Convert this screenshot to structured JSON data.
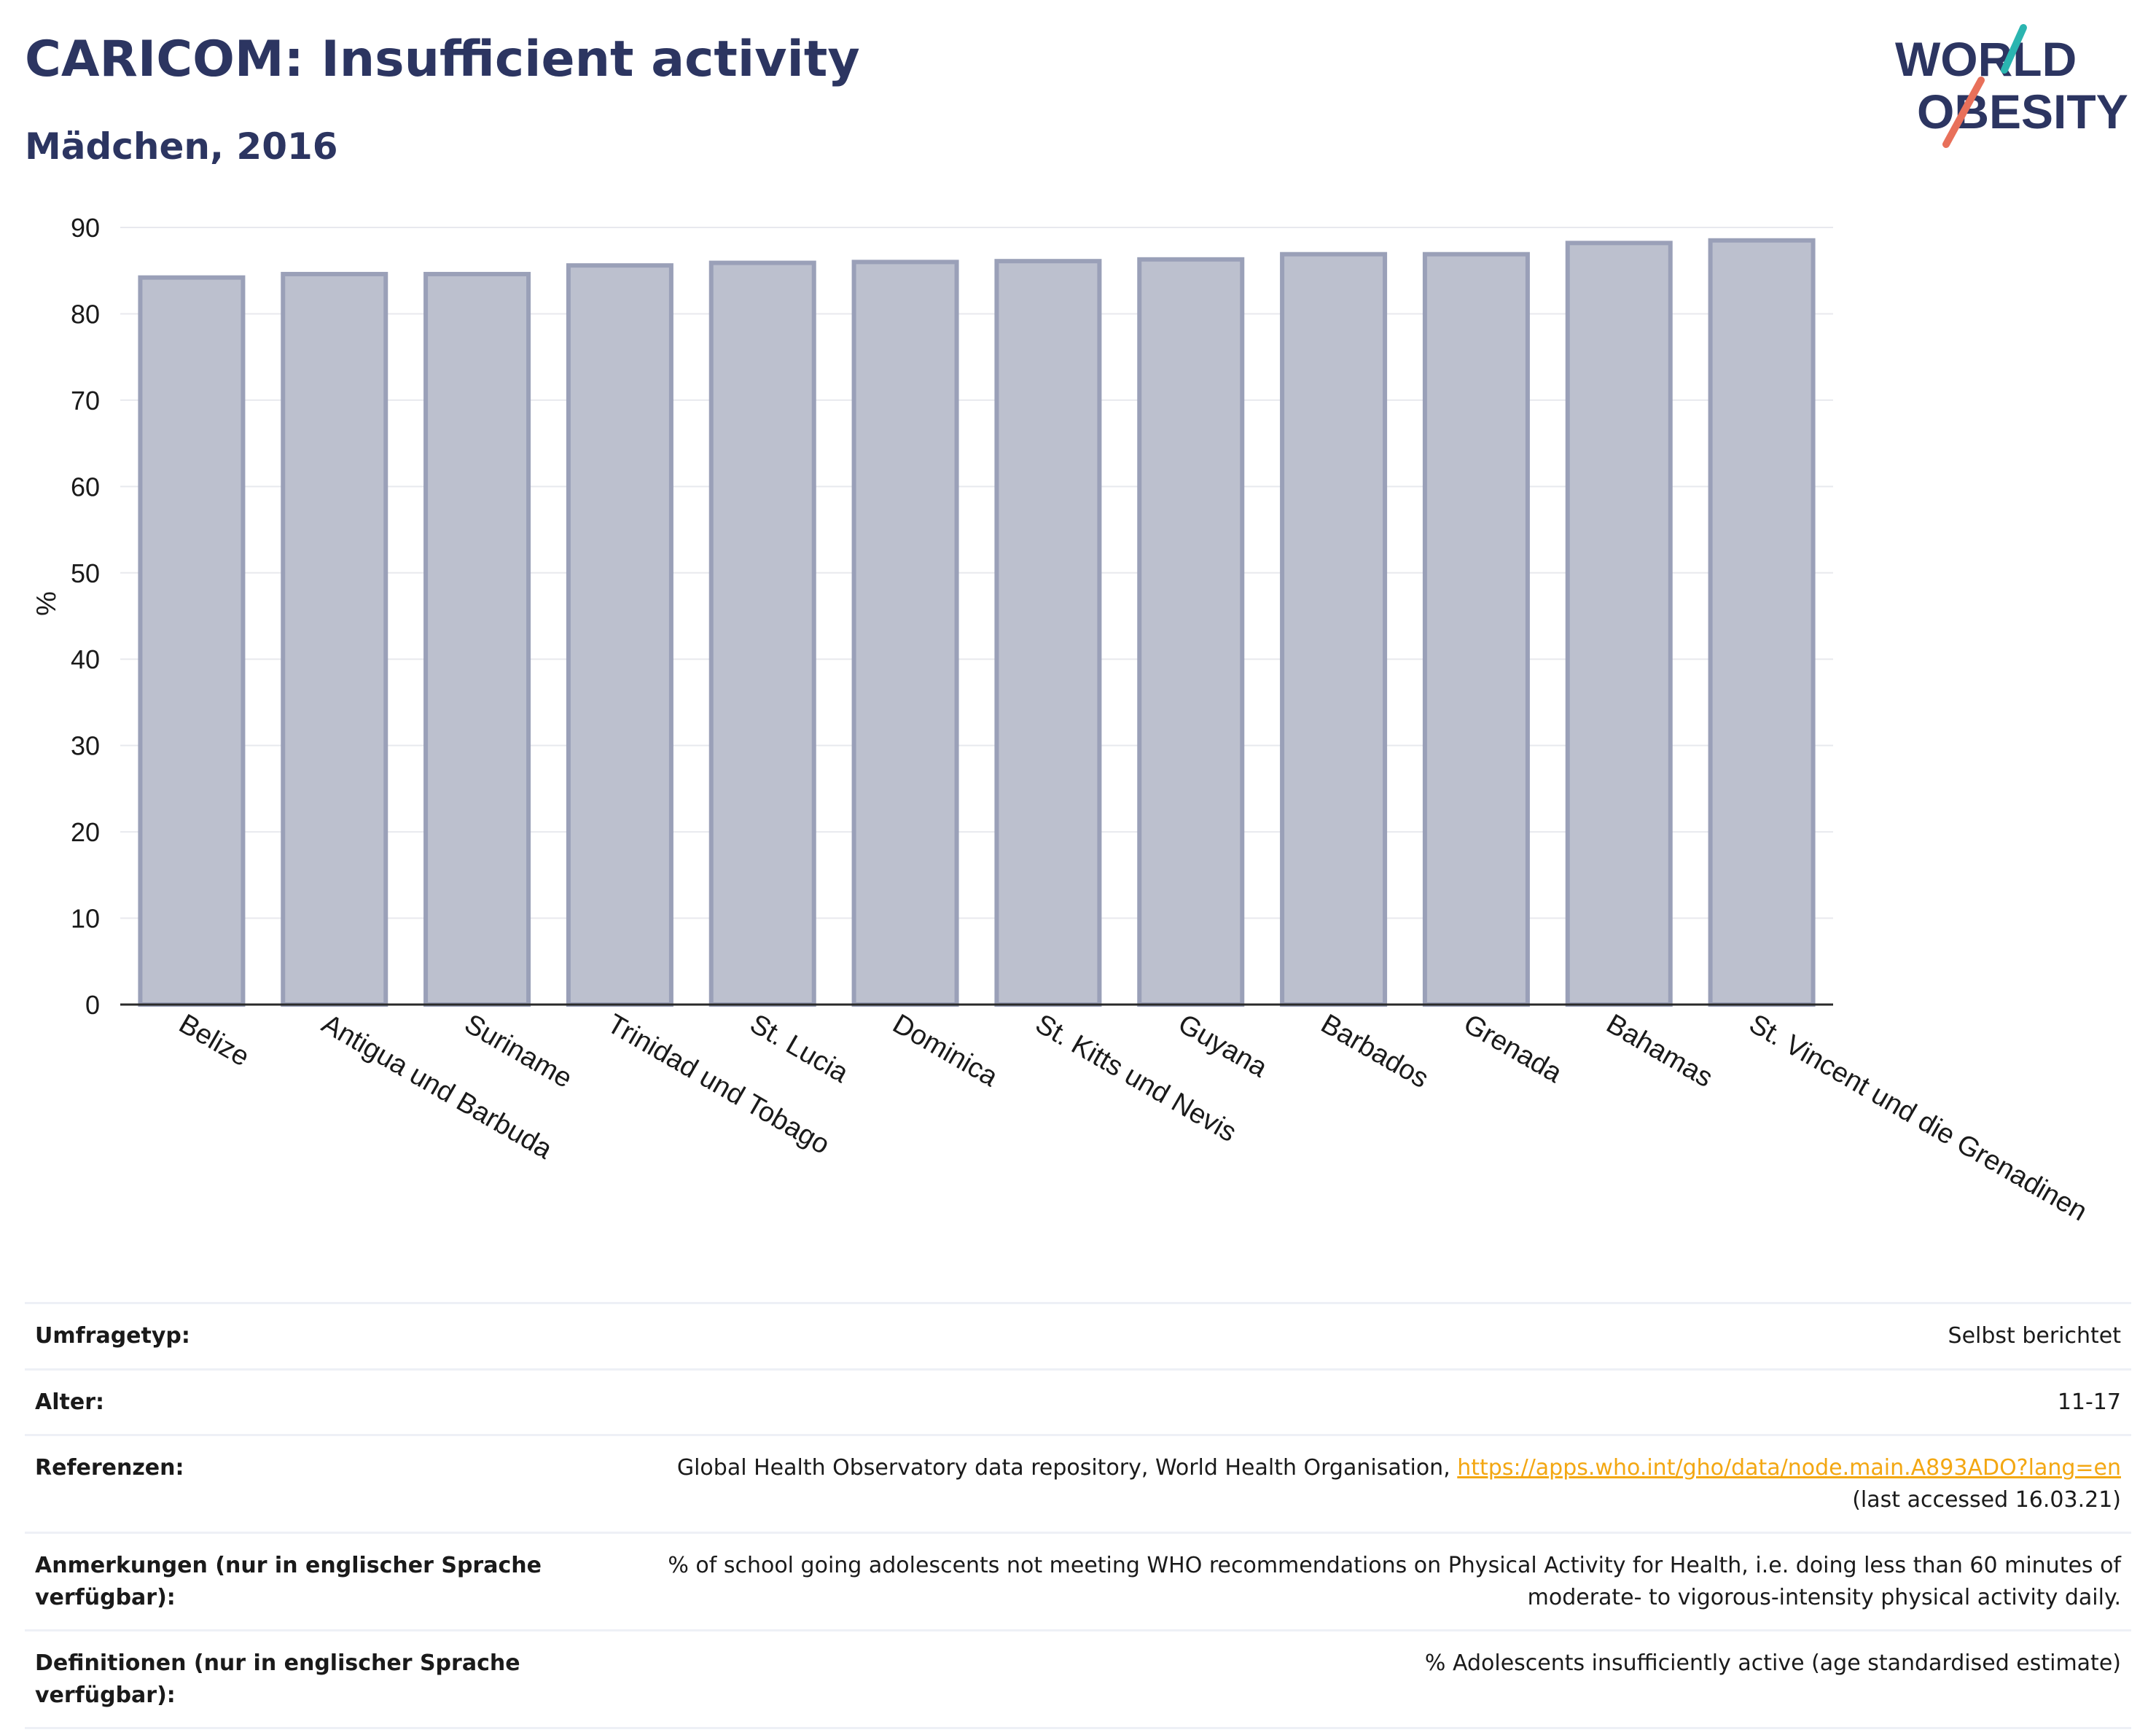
{
  "header": {
    "title": "CARICOM: Insufficient activity",
    "subtitle": "Mädchen, 2016"
  },
  "logo": {
    "line1": "WORLD",
    "line2": "OBESITY",
    "brand_color": "#2c3561",
    "accent_teal": "#2bb5b0",
    "accent_coral": "#e8705a"
  },
  "chart_data": {
    "type": "bar",
    "categories": [
      "Belize",
      "Antigua und Barbuda",
      "Suriname",
      "Trinidad und Tobago",
      "St. Lucia",
      "Dominica",
      "St. Kitts und Nevis",
      "Guyana",
      "Barbados",
      "Grenada",
      "Bahamas",
      "St. Vincent und die Grenadinen"
    ],
    "values": [
      84.2,
      84.6,
      84.6,
      85.6,
      85.9,
      86.0,
      86.1,
      86.3,
      86.9,
      86.9,
      88.2,
      88.5
    ],
    "ylabel": "%",
    "ylim": [
      0,
      90
    ],
    "yticks": [
      0,
      10,
      20,
      30,
      40,
      50,
      60,
      70,
      80,
      90
    ],
    "grid": true,
    "bar_fill": "#bcc0ce",
    "bar_stroke": "#9aa0b8"
  },
  "info_rows": [
    {
      "label": "Umfragetyp:",
      "value": "Selbst berichtet"
    },
    {
      "label": "Alter:",
      "value": "11-17"
    },
    {
      "label": "Referenzen:",
      "value": "Global Health Observatory data repository, World Health Organisation, ",
      "link": "https://apps.who.int/gho/data/node.main.A893ADO?lang=en",
      "value_after": "(last accessed 16.03.21)"
    },
    {
      "label": "Anmerkungen (nur in englischer Sprache verfügbar):",
      "value": "% of school going adolescents not meeting WHO recommendations on Physical Activity for Health, i.e. doing less than 60 minutes of moderate- to vigorous-intensity physical activity daily."
    },
    {
      "label": "Definitionen (nur in englischer Sprache verfügbar):",
      "value": "% Adolescents insufficiently active (age standardised estimate)"
    }
  ]
}
